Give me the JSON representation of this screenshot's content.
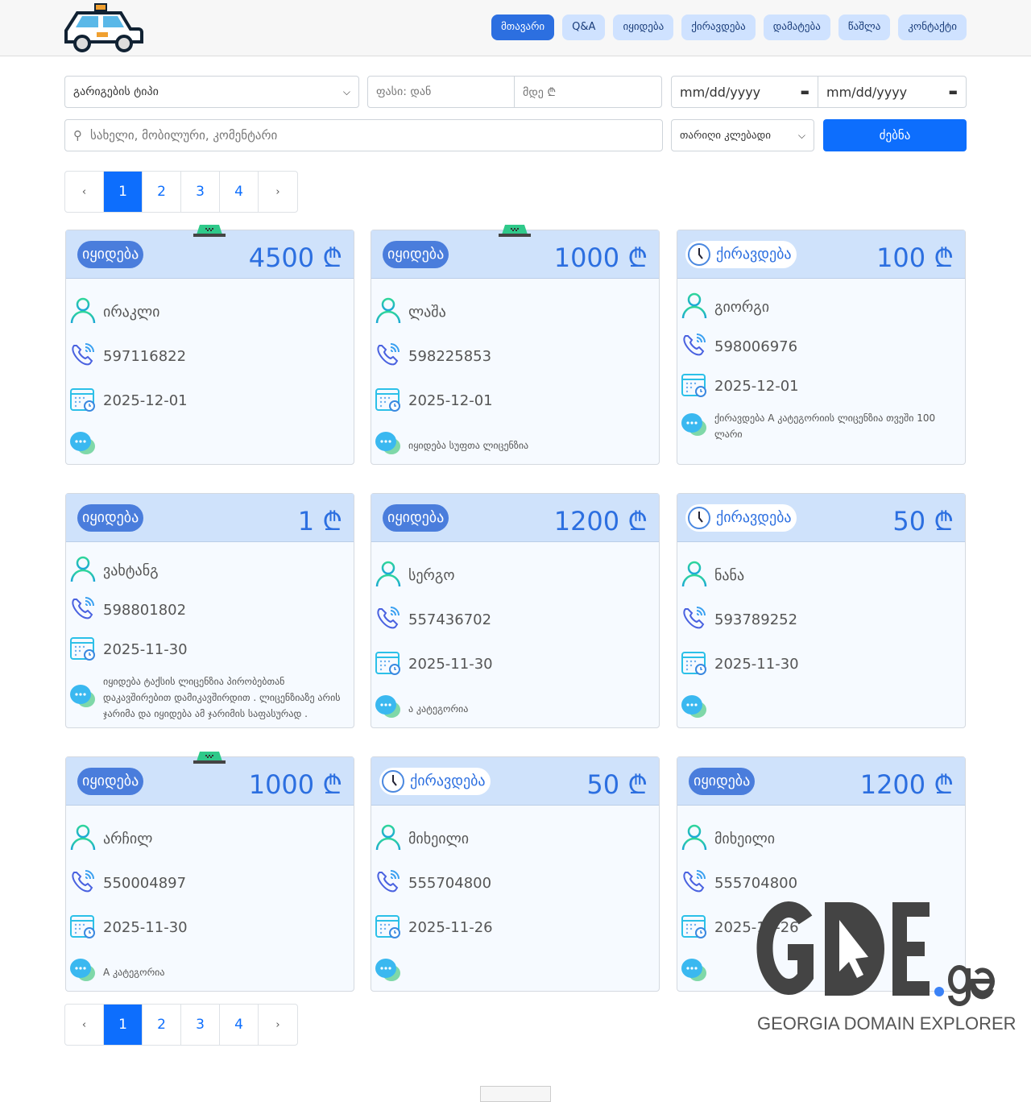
{
  "nav": {
    "items": [
      {
        "label": "მთავარი",
        "active": true
      },
      {
        "label": "Q&A"
      },
      {
        "label": "იყიდება"
      },
      {
        "label": "ქირავდება"
      },
      {
        "label": "დამატება"
      },
      {
        "label": "წაშლა"
      },
      {
        "label": "კონტაქტი"
      }
    ]
  },
  "filters": {
    "type_select": "გარიგების ტიპი",
    "price_from_placeholder": "ფასი: დან",
    "price_to_placeholder": "მდე ₾",
    "date_from_placeholder": "mm/dd/yyyy",
    "date_to_placeholder": "mm/dd/yyyy",
    "search_placeholder": "სახელი, მობილური, კომენტარი",
    "sort_select": "თარიღი კლებადი",
    "search_button": "ძებნა"
  },
  "pagination": {
    "prev": "‹",
    "next": "›",
    "pages": [
      "1",
      "2",
      "3",
      "4"
    ],
    "current": "1"
  },
  "currency": "₾",
  "cards": [
    {
      "type": "იყიდება",
      "kind": "sale",
      "taxi": true,
      "price": "4500",
      "name": "ირაკლი",
      "phone": "597116822",
      "date": "2025-12-01",
      "comment": ""
    },
    {
      "type": "იყიდება",
      "kind": "sale",
      "taxi": true,
      "price": "1000",
      "name": "ლაშა",
      "phone": "598225853",
      "date": "2025-12-01",
      "comment": "იყიდება სუფთა ლიცენზია"
    },
    {
      "type": "ქირავდება",
      "kind": "rent",
      "taxi": false,
      "price": "100",
      "name": "გიორგი",
      "phone": "598006976",
      "date": "2025-12-01",
      "comment": "ქირავდება A კატეგორიის ლიცენზია თვეში 100 ლარი"
    },
    {
      "type": "იყიდება",
      "kind": "sale",
      "taxi": false,
      "price": "1",
      "name": "ვახტანგ",
      "phone": "598801802",
      "date": "2025-11-30",
      "comment": "იყიდება ტაქსის ლიცენზია პირობებთან დაკავშირებით დამიკავშირდით . ლიცენზიაზე არის ჯარიმა და იყიდება ამ ჯარიმის საფასურად ."
    },
    {
      "type": "იყიდება",
      "kind": "sale",
      "taxi": false,
      "price": "1200",
      "name": "სერგო",
      "phone": "557436702",
      "date": "2025-11-30",
      "comment": "ა კატეგორია"
    },
    {
      "type": "ქირავდება",
      "kind": "rent",
      "taxi": false,
      "price": "50",
      "name": "ნანა",
      "phone": "593789252",
      "date": "2025-11-30",
      "comment": ""
    },
    {
      "type": "იყიდება",
      "kind": "sale",
      "taxi": true,
      "price": "1000",
      "name": "არჩილ",
      "phone": "550004897",
      "date": "2025-11-30",
      "comment": "A კატეგორია"
    },
    {
      "type": "ქირავდება",
      "kind": "rent",
      "taxi": false,
      "price": "50",
      "name": "მიხეილი",
      "phone": "555704800",
      "date": "2025-11-26",
      "comment": ""
    },
    {
      "type": "იყიდება",
      "kind": "sale",
      "taxi": false,
      "price": "1200",
      "name": "მიხეილი",
      "phone": "555704800",
      "date": "2025-11-26",
      "comment": ""
    }
  ],
  "watermark": {
    "logo_text": "GDE",
    "logo_suffix": "ge",
    "tagline": "GEORGIA DOMAIN EXPLORER"
  },
  "colors": {
    "primary": "#0d6efd",
    "nav_active": "#2c6fe0",
    "nav_item": "#cfe2ff",
    "card_head": "#cfe2fb",
    "badge_sale": "#4a7ddc"
  }
}
